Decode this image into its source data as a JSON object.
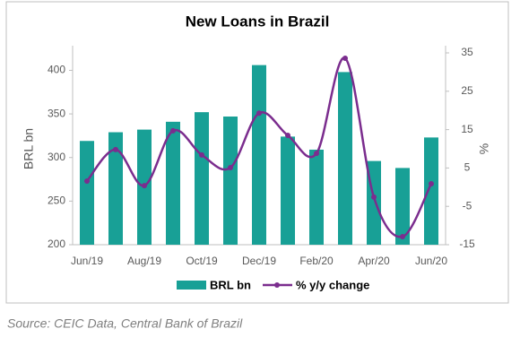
{
  "chart_data": {
    "type": "bar_line",
    "title": "New Loans in Brazil",
    "categories": [
      "Jun/19",
      null,
      "Aug/19",
      null,
      "Oct/19",
      null,
      "Dec/19",
      null,
      "Feb/20",
      null,
      "Apr/20",
      null,
      "Jun/20"
    ],
    "series": [
      {
        "name": "BRL bn",
        "type": "bar",
        "color": "#18a096",
        "values": [
          319,
          329,
          332,
          341,
          352,
          347,
          406,
          324,
          309,
          398,
          296,
          288,
          323
        ]
      },
      {
        "name": "% y/y change",
        "type": "line",
        "axis": "y2",
        "color": "#7b2d8e",
        "values": [
          1.6,
          9.8,
          0.4,
          14.7,
          8.4,
          5.1,
          19.3,
          13.5,
          8.8,
          33.6,
          -2.6,
          -12.9,
          0.9
        ]
      }
    ],
    "ylabel": "BRL bn",
    "y2label": "%",
    "ylim": [
      200,
      420
    ],
    "yticks": [
      200,
      250,
      300,
      350,
      400
    ],
    "y2lim": [
      -15,
      35
    ],
    "y2ticks": [
      -15,
      -5,
      5,
      15,
      25,
      35
    ],
    "source": "Source: CEIC Data, Central Bank of Brazil"
  }
}
